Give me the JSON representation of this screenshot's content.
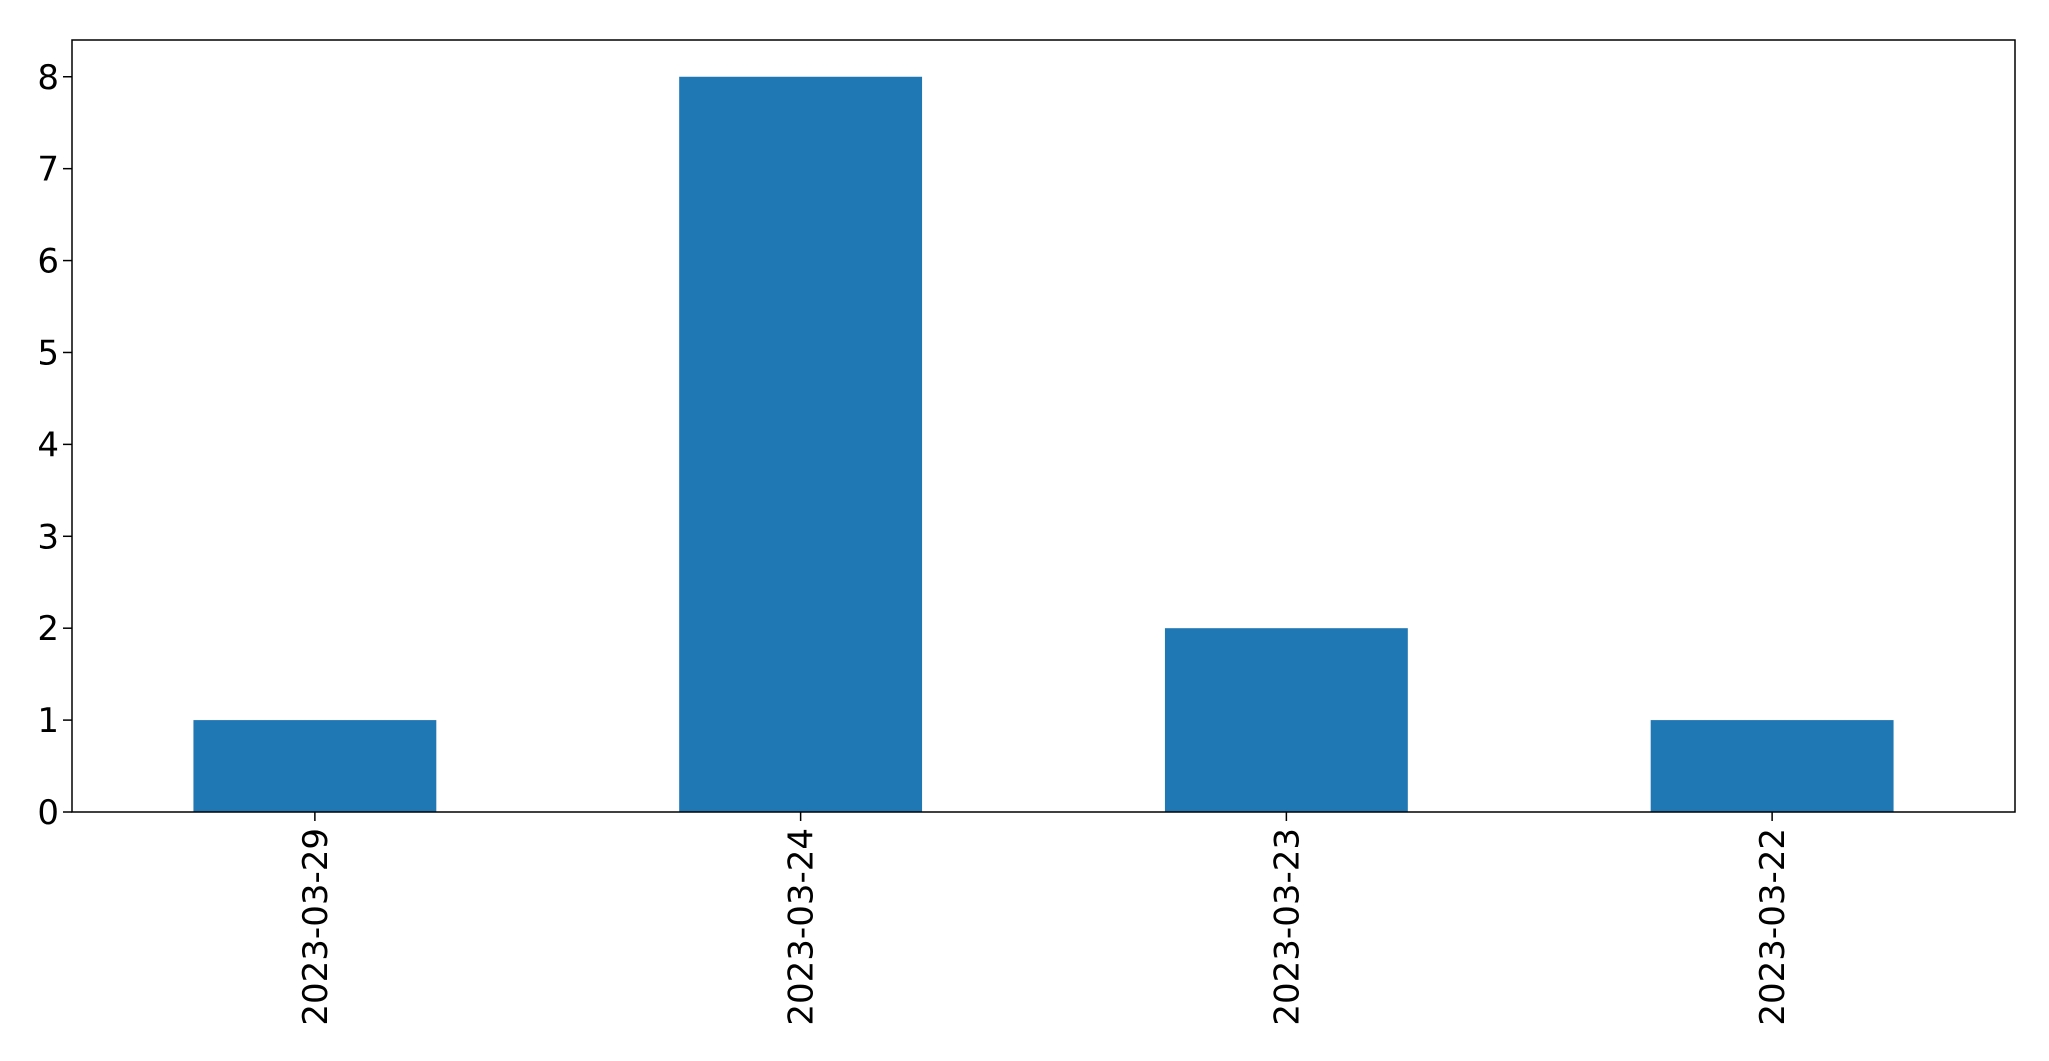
{
  "chart_data": {
    "type": "bar",
    "categories": [
      "2023-03-29",
      "2023-03-24",
      "2023-03-23",
      "2023-03-22"
    ],
    "values": [
      1,
      8,
      2,
      1
    ],
    "yticks": [
      "0",
      "1",
      "2",
      "3",
      "4",
      "5",
      "6",
      "7",
      "8"
    ],
    "ylim": [
      0,
      8.4
    ],
    "title": "",
    "xlabel": "",
    "ylabel": "",
    "grid": false,
    "bar_color": "#1f77b4"
  }
}
